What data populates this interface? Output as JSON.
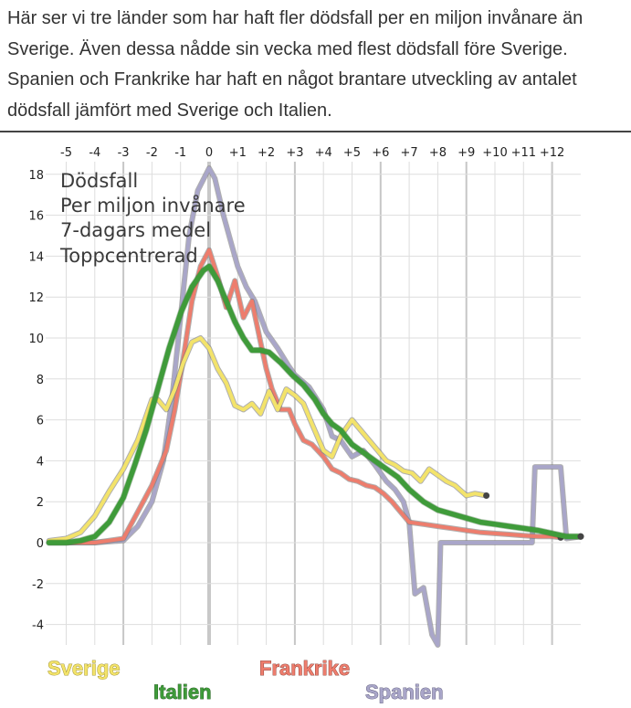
{
  "intro": {
    "text": "Här ser vi tre länder som har haft fler dödsfall per en miljon invånare än Sverige. Även dessa nådde sin vecka med flest dödsfall före Sverige. Spanien och Frankrike har haft en något brantare utveckling av antalet dödsfall jämfört med Sverige och Italien."
  },
  "chart_data": {
    "type": "line",
    "annotation_lines": [
      "Dödsfall",
      "Per miljon invånare",
      "7-dagars medel",
      "Toppcentrerad"
    ],
    "x_ticks": [
      "-5",
      "-4",
      "-3",
      "-2",
      "-1",
      "0",
      "+1",
      "+2",
      "+3",
      "+4",
      "+5",
      "+6",
      "+7",
      "+8",
      "+9",
      "+10",
      "+11",
      "+12"
    ],
    "x_tick_values": [
      -5,
      -4,
      -3,
      -2,
      -1,
      0,
      1,
      2,
      3,
      4,
      5,
      6,
      7,
      8,
      9,
      10,
      11,
      12
    ],
    "y_ticks": [
      18,
      16,
      14,
      12,
      10,
      8,
      6,
      4,
      2,
      0,
      -2,
      -4
    ],
    "xlim": [
      -5.7,
      13
    ],
    "ylim": [
      -5,
      18.5
    ],
    "grid": true,
    "series": [
      {
        "name": "Spanien",
        "color": "#a9a6c9",
        "points": [
          [
            -5.6,
            0
          ],
          [
            -4,
            0
          ],
          [
            -3,
            0.1
          ],
          [
            -2.5,
            0.8
          ],
          [
            -2,
            2
          ],
          [
            -1.6,
            4
          ],
          [
            -1.3,
            7
          ],
          [
            -1,
            11
          ],
          [
            -0.7,
            15
          ],
          [
            -0.4,
            17.2
          ],
          [
            0,
            18.3
          ],
          [
            0.2,
            17.8
          ],
          [
            0.5,
            16
          ],
          [
            0.8,
            14.5
          ],
          [
            1,
            13.5
          ],
          [
            1.3,
            12.5
          ],
          [
            1.6,
            11.8
          ],
          [
            2,
            10.3
          ],
          [
            2.4,
            9.5
          ],
          [
            2.8,
            8.6
          ],
          [
            3,
            8.2
          ],
          [
            3.5,
            7.6
          ],
          [
            4,
            6.5
          ],
          [
            4.3,
            5.2
          ],
          [
            4.6,
            5
          ],
          [
            5,
            4.2
          ],
          [
            5.4,
            4.5
          ],
          [
            5.8,
            3.8
          ],
          [
            6.2,
            3
          ],
          [
            6.5,
            2.6
          ],
          [
            6.8,
            2
          ],
          [
            7,
            1
          ],
          [
            7.2,
            -2.5
          ],
          [
            7.5,
            -2.2
          ],
          [
            7.8,
            -4.5
          ],
          [
            8,
            -5
          ],
          [
            8.1,
            0
          ],
          [
            9,
            0
          ],
          [
            10,
            0
          ],
          [
            11.3,
            0
          ],
          [
            11.4,
            3.7
          ],
          [
            12.3,
            3.7
          ],
          [
            12.5,
            0.2
          ],
          [
            13,
            0.3
          ]
        ]
      },
      {
        "name": "Frankrike",
        "color": "#ed7d6d",
        "points": [
          [
            -5.6,
            0
          ],
          [
            -4,
            0
          ],
          [
            -3,
            0.2
          ],
          [
            -2.5,
            1.5
          ],
          [
            -2,
            2.8
          ],
          [
            -1.5,
            4.5
          ],
          [
            -1.2,
            6.5
          ],
          [
            -0.9,
            9
          ],
          [
            -0.6,
            11.8
          ],
          [
            -0.3,
            13.5
          ],
          [
            0,
            14.3
          ],
          [
            0.3,
            13
          ],
          [
            0.6,
            11.5
          ],
          [
            0.9,
            12.8
          ],
          [
            1.2,
            11
          ],
          [
            1.5,
            11.8
          ],
          [
            1.8,
            9.8
          ],
          [
            2,
            8.5
          ],
          [
            2.2,
            7.5
          ],
          [
            2.5,
            6.5
          ],
          [
            2.8,
            6.5
          ],
          [
            3,
            5.8
          ],
          [
            3.3,
            5
          ],
          [
            3.6,
            4.8
          ],
          [
            4,
            4.2
          ],
          [
            4.3,
            3.6
          ],
          [
            4.6,
            3.4
          ],
          [
            4.9,
            3.1
          ],
          [
            5.2,
            3
          ],
          [
            5.5,
            2.8
          ],
          [
            5.8,
            2.7
          ],
          [
            6.1,
            2.4
          ],
          [
            6.4,
            2
          ],
          [
            6.7,
            1.5
          ],
          [
            7,
            1
          ],
          [
            7.5,
            0.9
          ],
          [
            8,
            0.8
          ],
          [
            8.5,
            0.7
          ],
          [
            9,
            0.6
          ],
          [
            9.5,
            0.5
          ],
          [
            10,
            0.45
          ],
          [
            10.5,
            0.4
          ],
          [
            11,
            0.35
          ],
          [
            11.5,
            0.3
          ],
          [
            12,
            0.3
          ],
          [
            12.3,
            0.25
          ]
        ]
      },
      {
        "name": "Sverige",
        "color": "#f3e36a",
        "points": [
          [
            -5.6,
            0.1
          ],
          [
            -5,
            0.2
          ],
          [
            -4.5,
            0.5
          ],
          [
            -4,
            1.3
          ],
          [
            -3.5,
            2.5
          ],
          [
            -3,
            3.6
          ],
          [
            -2.5,
            5
          ],
          [
            -2,
            7
          ],
          [
            -1.8,
            7
          ],
          [
            -1.5,
            6.5
          ],
          [
            -1.2,
            7.5
          ],
          [
            -0.9,
            8.8
          ],
          [
            -0.6,
            9.8
          ],
          [
            -0.3,
            10
          ],
          [
            0,
            9.5
          ],
          [
            0.3,
            8.5
          ],
          [
            0.6,
            7.8
          ],
          [
            0.9,
            6.7
          ],
          [
            1.2,
            6.5
          ],
          [
            1.5,
            6.8
          ],
          [
            1.8,
            6.3
          ],
          [
            2.1,
            7.4
          ],
          [
            2.4,
            6.5
          ],
          [
            2.7,
            7.5
          ],
          [
            3,
            7.2
          ],
          [
            3.3,
            6.8
          ],
          [
            3.6,
            5.8
          ],
          [
            4,
            4.5
          ],
          [
            4.3,
            4.2
          ],
          [
            4.6,
            5.2
          ],
          [
            5,
            6
          ],
          [
            5.3,
            5.5
          ],
          [
            5.6,
            5
          ],
          [
            5.9,
            4.5
          ],
          [
            6.2,
            4
          ],
          [
            6.5,
            3.8
          ],
          [
            6.8,
            3.5
          ],
          [
            7.1,
            3.4
          ],
          [
            7.4,
            3
          ],
          [
            7.7,
            3.6
          ],
          [
            8,
            3.3
          ],
          [
            8.3,
            3
          ],
          [
            8.6,
            2.8
          ],
          [
            9,
            2.3
          ],
          [
            9.3,
            2.4
          ],
          [
            9.7,
            2.3
          ]
        ]
      },
      {
        "name": "Italien",
        "color": "#3f9b3a",
        "points": [
          [
            -5.6,
            0
          ],
          [
            -5,
            0
          ],
          [
            -4.5,
            0.1
          ],
          [
            -4,
            0.3
          ],
          [
            -3.5,
            1
          ],
          [
            -3,
            2.2
          ],
          [
            -2.6,
            3.8
          ],
          [
            -2.2,
            5.5
          ],
          [
            -1.8,
            7.5
          ],
          [
            -1.4,
            9.5
          ],
          [
            -1,
            11.2
          ],
          [
            -0.6,
            12.5
          ],
          [
            -0.2,
            13.3
          ],
          [
            0,
            13.5
          ],
          [
            0.3,
            12.8
          ],
          [
            0.6,
            11.8
          ],
          [
            0.9,
            10.8
          ],
          [
            1.2,
            10
          ],
          [
            1.5,
            9.4
          ],
          [
            1.8,
            9.4
          ],
          [
            2.1,
            9.3
          ],
          [
            2.5,
            8.8
          ],
          [
            2.9,
            8.2
          ],
          [
            3.3,
            7.7
          ],
          [
            3.7,
            7
          ],
          [
            4,
            6.3
          ],
          [
            4.3,
            5.8
          ],
          [
            4.6,
            5.5
          ],
          [
            5,
            4.8
          ],
          [
            5.4,
            4.4
          ],
          [
            5.8,
            4
          ],
          [
            6.2,
            3.6
          ],
          [
            6.6,
            3.2
          ],
          [
            7,
            2.6
          ],
          [
            7.5,
            2
          ],
          [
            8,
            1.6
          ],
          [
            8.5,
            1.4
          ],
          [
            9,
            1.2
          ],
          [
            9.5,
            1
          ],
          [
            10,
            0.9
          ],
          [
            10.5,
            0.8
          ],
          [
            11,
            0.7
          ],
          [
            11.5,
            0.6
          ],
          [
            12,
            0.45
          ],
          [
            12.5,
            0.3
          ],
          [
            13,
            0.3
          ]
        ]
      }
    ]
  },
  "legend": [
    {
      "name": "Sverige",
      "color": "#f3e36a",
      "stroke": "#8c7f1d"
    },
    {
      "name": "Italien",
      "color": "#3f9b3a",
      "stroke": "#1d521a"
    },
    {
      "name": "Frankrike",
      "color": "#ed7d6d",
      "stroke": "#7a2e25"
    },
    {
      "name": "Spanien",
      "color": "#a9a6c9",
      "stroke": "#4f4c6d"
    }
  ]
}
